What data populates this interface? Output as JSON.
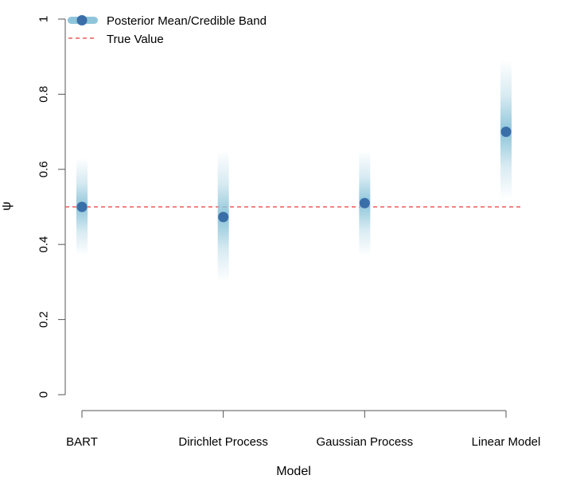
{
  "chart_data": {
    "type": "scatter",
    "categories": [
      "BART",
      "Dirichlet Process",
      "Gaussian Process",
      "Linear Model"
    ],
    "series": [
      {
        "name": "Posterior Mean/Credible Band",
        "values": [
          0.5,
          0.473,
          0.51,
          0.7
        ],
        "band_lower": [
          0.37,
          0.3,
          0.37,
          0.52
        ],
        "band_upper": [
          0.63,
          0.65,
          0.65,
          0.89
        ]
      }
    ],
    "reference_line": {
      "name": "True Value",
      "value": 0.5
    },
    "xlabel": "Model",
    "ylabel": "ψ",
    "ylim": [
      0,
      1
    ],
    "yticks": [
      0,
      0.2,
      0.4,
      0.6,
      0.8,
      1
    ],
    "ytick_labels": [
      "0",
      "0.2",
      "0.4",
      "0.6",
      "0.8",
      "1"
    ],
    "grid": false,
    "legend_position": "top-left",
    "colors": {
      "point": "#3A6EA8",
      "band": "#8EC5DA",
      "reference": "#EE5A5A",
      "axis": "#555555"
    }
  }
}
